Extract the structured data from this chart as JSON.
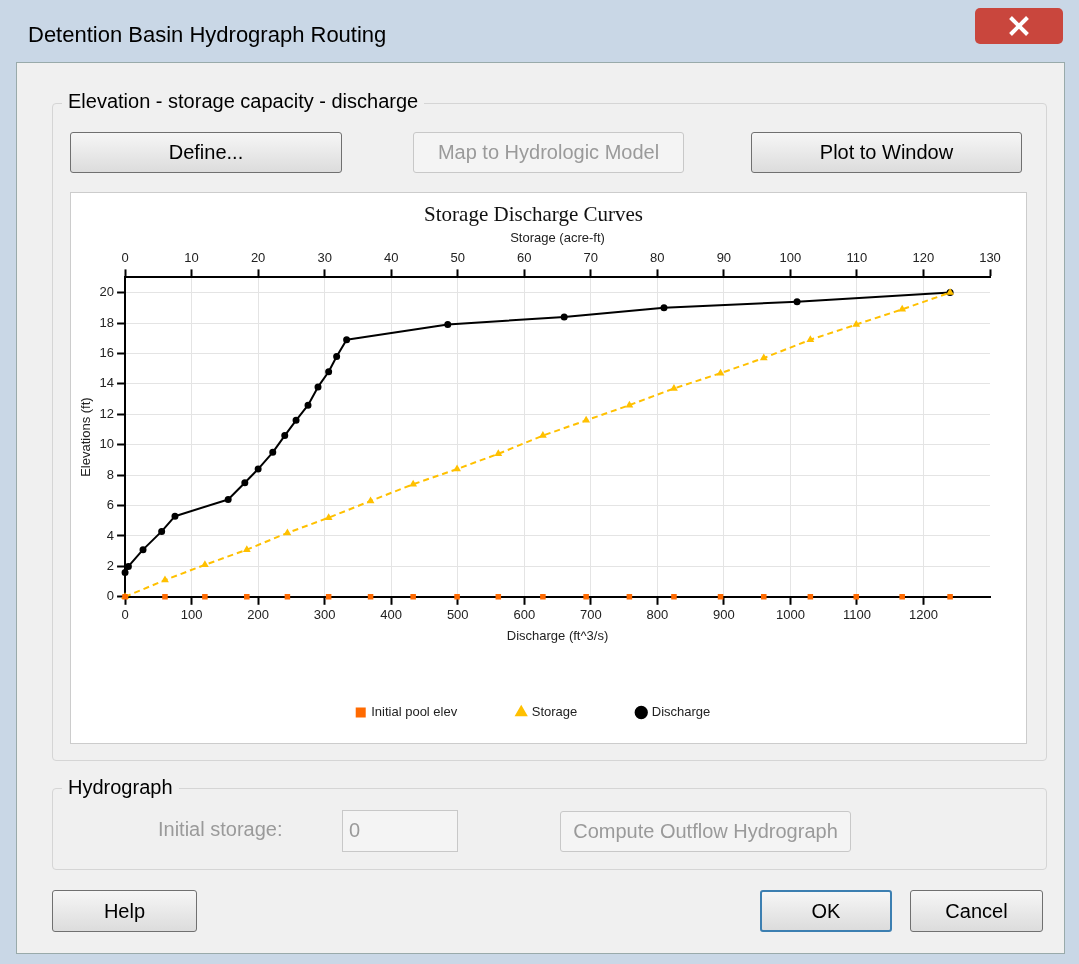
{
  "chart_data": [
    {
      "type": "line",
      "title": "Storage Discharge Curves",
      "xlabel": "Discharge (ft^3/s)",
      "ylabel": "Elevations (ft)",
      "x2label": "Storage (acre-ft)",
      "xlim": [
        0,
        1300
      ],
      "xticks": [
        0,
        100,
        200,
        300,
        400,
        500,
        600,
        700,
        800,
        900,
        1000,
        1100,
        1200
      ],
      "x2lim": [
        0,
        130
      ],
      "x2ticks": [
        0,
        10,
        20,
        30,
        40,
        50,
        60,
        70,
        80,
        90,
        100,
        110,
        120,
        130
      ],
      "ylim": [
        0,
        21
      ],
      "yticks": [
        0,
        2,
        4,
        6,
        8,
        10,
        12,
        14,
        16,
        18,
        20
      ],
      "grid": true,
      "legend": "bottom",
      "series": [
        {
          "name": "Discharge",
          "type": "line",
          "color": "#000000",
          "marker": "circle",
          "line_style": "solid",
          "x": [
            0,
            5,
            27,
            55,
            75,
            155,
            180,
            200,
            222,
            240,
            257,
            275,
            290,
            306,
            318,
            333,
            485,
            660,
            810,
            1010,
            1240
          ],
          "values": [
            1.6,
            2,
            3.1,
            4.3,
            5.3,
            6.4,
            7.5,
            8.4,
            9.5,
            10.6,
            11.6,
            12.6,
            13.8,
            14.8,
            15.8,
            16.9,
            17.9,
            18.4,
            19,
            19.4,
            20
          ]
        },
        {
          "name": "Storage",
          "type": "line",
          "axis": "x2",
          "color": "#ffc000",
          "marker": "triangle",
          "line_style": "dashed",
          "x": [
            0,
            6,
            12,
            18.3,
            24.4,
            30.6,
            36.9,
            43.3,
            49.9,
            56.1,
            62.8,
            69.3,
            75.8,
            82.5,
            89.5,
            96,
            103,
            109.9,
            116.8,
            124
          ],
          "values": [
            0,
            1.1,
            2.1,
            3.1,
            4.2,
            5.2,
            6.3,
            7.4,
            8.4,
            9.4,
            10.6,
            11.6,
            12.6,
            13.7,
            14.7,
            15.7,
            16.9,
            17.9,
            18.9,
            20
          ]
        },
        {
          "name": "Initial pool elev",
          "type": "scatter",
          "axis": "x2",
          "color": "#ff6a00",
          "marker": "square",
          "x": [
            0,
            6,
            12,
            18.3,
            24.4,
            30.6,
            36.9,
            43.3,
            49.9,
            56.1,
            62.8,
            69.3,
            75.8,
            82.5,
            89.5,
            96,
            103,
            109.9,
            116.8,
            124
          ],
          "values": [
            0,
            0,
            0,
            0,
            0,
            0,
            0,
            0,
            0,
            0,
            0,
            0,
            0,
            0,
            0,
            0,
            0,
            0,
            0,
            0
          ]
        }
      ]
    },
    {
      "type": "other",
      "title": "Detention Basin Hydrograph Routing",
      "annotations": [
        "Elevation - storage capacity - discharge",
        "Define...",
        "Map to Hydrologic Model",
        "Plot to Window",
        "Hydrograph",
        "Initial storage:",
        "0",
        "Compute Outflow Hydrograph",
        "Help",
        "OK",
        "Cancel"
      ]
    }
  ]
}
